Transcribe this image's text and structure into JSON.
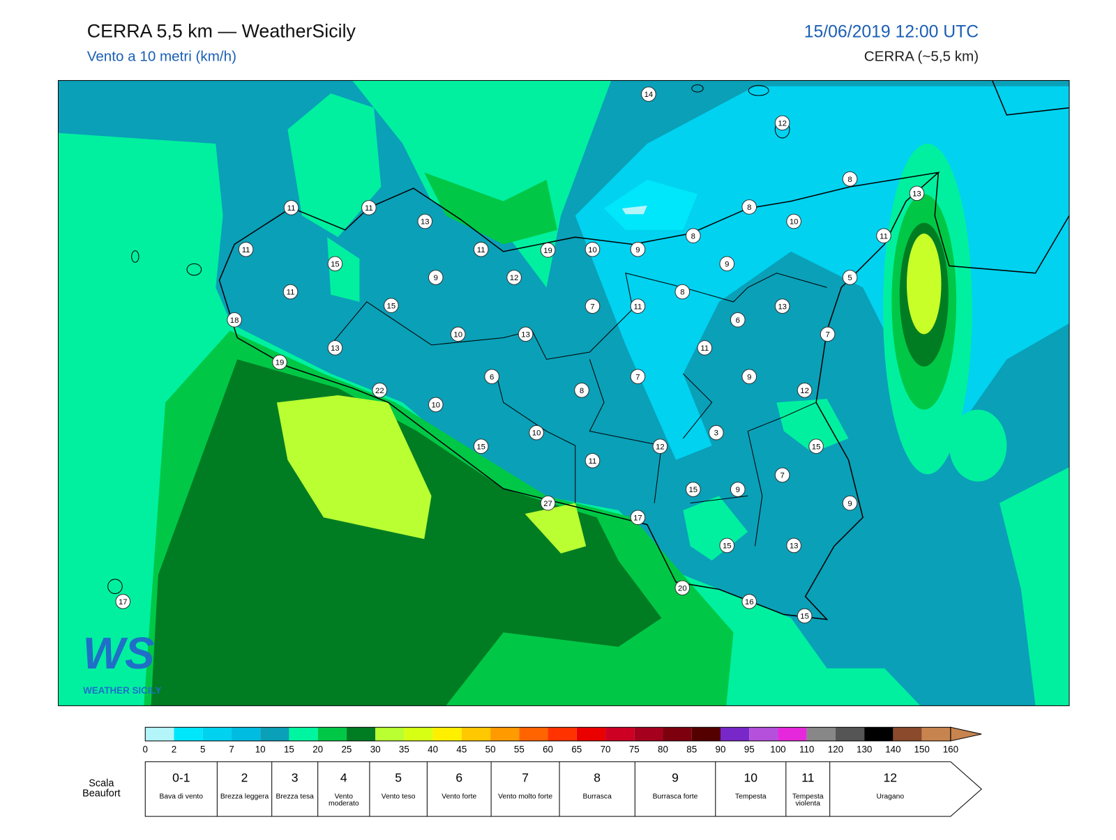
{
  "header": {
    "title": "CERRA 5,5 km — WeatherSicily",
    "subtitle": "Vento a 10 metri (km/h)",
    "datetime": "15/06/2019 12:00 UTC",
    "model": "CERRA (~5,5 km)"
  },
  "stations": [
    14,
    12,
    8,
    13,
    11,
    11,
    13,
    8,
    10,
    8,
    11,
    11,
    11,
    19,
    10,
    9,
    15,
    9,
    5,
    9,
    12,
    11,
    8,
    15,
    7,
    11,
    13,
    18,
    6,
    10,
    13,
    7,
    13,
    11,
    19,
    6,
    7,
    9,
    22,
    8,
    12,
    10,
    3,
    10,
    15,
    12,
    15,
    11,
    7,
    15,
    9,
    27,
    9,
    17,
    15,
    13,
    20,
    16,
    15,
    17
  ],
  "colorbar": {
    "ticks": [
      0,
      2,
      5,
      7,
      10,
      15,
      20,
      25,
      30,
      35,
      40,
      45,
      50,
      55,
      60,
      65,
      70,
      75,
      80,
      85,
      90,
      95,
      100,
      110,
      120,
      130,
      140,
      150,
      160
    ],
    "colors": [
      "#b4f5fa",
      "#00e6fa",
      "#00d2f0",
      "#00bce0",
      "#0aa0b8",
      "#00f5a0",
      "#00c846",
      "#007d23",
      "#b9ff32",
      "#d7ff14",
      "#fff000",
      "#ffc800",
      "#ff9b00",
      "#ff6400",
      "#ff3200",
      "#eb0000",
      "#cd0023",
      "#a5001e",
      "#7d000f",
      "#550000",
      "#7828c8",
      "#b450dc",
      "#e628dc",
      "#878787",
      "#555555",
      "#000000",
      "#8b4a2b",
      "#c8844f"
    ]
  },
  "beaufort": {
    "label": "Scala Beaufort",
    "levels": [
      {
        "force": "0-1",
        "description": "Bava di vento"
      },
      {
        "force": "2",
        "description": "Brezza leggera"
      },
      {
        "force": "3",
        "description": "Brezza tesa"
      },
      {
        "force": "4",
        "description": "Vento moderato"
      },
      {
        "force": "5",
        "description": "Vento teso"
      },
      {
        "force": "6",
        "description": "Vento forte"
      },
      {
        "force": "7",
        "description": "Vento molto forte"
      },
      {
        "force": "8",
        "description": "Burrasca"
      },
      {
        "force": "9",
        "description": "Burrasca forte"
      },
      {
        "force": "10",
        "description": "Tempesta"
      },
      {
        "force": "11",
        "description": "Tempesta violenta"
      },
      {
        "force": "12",
        "description": "Uragano"
      }
    ]
  },
  "logo": {
    "mark": "WS",
    "name": "WEATHER SICILY"
  }
}
